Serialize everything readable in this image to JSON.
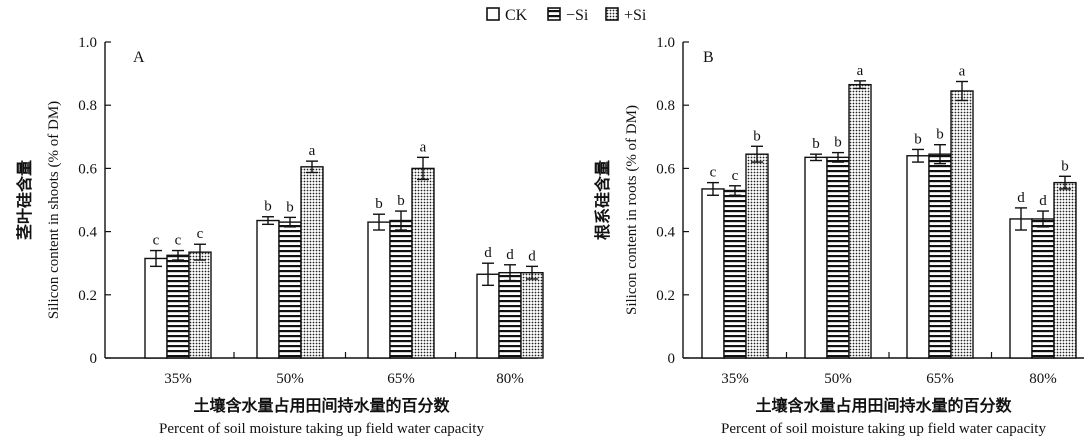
{
  "legend": [
    {
      "name": "CK",
      "pattern": "blank"
    },
    {
      "name": "−Si",
      "pattern": "hstripe"
    },
    {
      "name": "+Si",
      "pattern": "dots"
    }
  ],
  "chart_data": [
    {
      "type": "bar",
      "panel_label": "A",
      "categories": [
        "35%",
        "50%",
        "65%",
        "80%"
      ],
      "xlabel_cn": "土壤含水量占用田间持水量的百分数",
      "xlabel": "Percent of soil moisture taking up field water capacity",
      "ylabel_cn": "茎叶硅含量",
      "ylabel": "Silicon content in shoots (% of DM)",
      "ylim": [
        0,
        1.0
      ],
      "yticks": [
        "0",
        "0.2",
        "0.4",
        "0.6",
        "0.8",
        "1.0"
      ],
      "series": [
        {
          "name": "CK",
          "values": [
            0.315,
            0.435,
            0.43,
            0.265
          ],
          "errors": [
            0.025,
            0.012,
            0.025,
            0.035
          ],
          "letters": [
            "c",
            "b",
            "b",
            "d"
          ]
        },
        {
          "name": "−Si",
          "values": [
            0.325,
            0.43,
            0.435,
            0.27
          ],
          "errors": [
            0.015,
            0.015,
            0.03,
            0.025
          ],
          "letters": [
            "c",
            "b",
            "b",
            "d"
          ]
        },
        {
          "name": "+Si",
          "values": [
            0.335,
            0.605,
            0.6,
            0.27
          ],
          "errors": [
            0.025,
            0.018,
            0.035,
            0.02
          ],
          "letters": [
            "c",
            "a",
            "a",
            "d"
          ]
        }
      ]
    },
    {
      "type": "bar",
      "panel_label": "B",
      "categories": [
        "35%",
        "50%",
        "65%",
        "80%"
      ],
      "xlabel_cn": "土壤含水量占用田间持水量的百分数",
      "xlabel": "Percent of soil moisture taking up field water capacity",
      "ylabel_cn": "根系硅含量",
      "ylabel": "Silicon content in roots (% of DM)",
      "ylim": [
        0,
        1.0
      ],
      "yticks": [
        "0",
        "0.2",
        "0.4",
        "0.6",
        "0.8",
        "1.0"
      ],
      "series": [
        {
          "name": "CK",
          "values": [
            0.535,
            0.635,
            0.64,
            0.44
          ],
          "errors": [
            0.02,
            0.01,
            0.02,
            0.035
          ],
          "letters": [
            "c",
            "b",
            "b",
            "d"
          ]
        },
        {
          "name": "−Si",
          "values": [
            0.53,
            0.635,
            0.645,
            0.44
          ],
          "errors": [
            0.015,
            0.015,
            0.03,
            0.025
          ],
          "letters": [
            "c",
            "b",
            "b",
            "d"
          ]
        },
        {
          "name": "+Si",
          "values": [
            0.645,
            0.865,
            0.845,
            0.555
          ],
          "errors": [
            0.025,
            0.012,
            0.03,
            0.02
          ],
          "letters": [
            "b",
            "a",
            "a",
            "b"
          ]
        }
      ]
    }
  ]
}
